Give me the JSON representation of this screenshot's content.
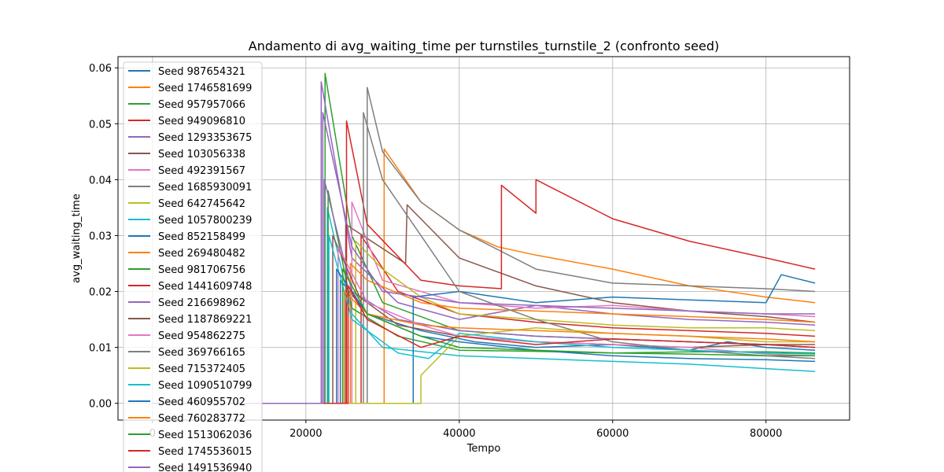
{
  "chart_data": {
    "type": "line",
    "title": "Andamento di avg_waiting_time per turnstiles_turnstile_2 (confronto seed)",
    "xlabel": "Tempo",
    "ylabel": "avg_waiting_time",
    "xlim": [
      -4500,
      90900
    ],
    "ylim": [
      -0.003,
      0.062
    ],
    "xticks": [
      0,
      20000,
      40000,
      60000,
      80000
    ],
    "xtick_labels": [
      "0",
      "20000",
      "40000",
      "60000",
      "80000"
    ],
    "yticks": [
      0.0,
      0.01,
      0.02,
      0.03,
      0.04,
      0.05,
      0.06
    ],
    "ytick_labels": [
      "0.00",
      "0.01",
      "0.02",
      "0.03",
      "0.04",
      "0.05",
      "0.06"
    ],
    "grid": true,
    "legend_position": "upper-left",
    "series": [
      {
        "name": "Seed 987654321",
        "color": "#1f77b4",
        "x": [
          0,
          24500,
          24500,
          28000,
          35000,
          42000,
          50000,
          60000,
          70000,
          75000,
          80000,
          86400
        ],
        "y": [
          0,
          0,
          0.022,
          0.016,
          0.013,
          0.011,
          0.01,
          0.0105,
          0.0095,
          0.011,
          0.01,
          0.0095
        ]
      },
      {
        "name": "Seed 1746581699",
        "color": "#ff7f0e",
        "x": [
          0,
          30200,
          30200,
          35000,
          40000,
          45000,
          50000,
          60000,
          70000,
          80000,
          86400
        ],
        "y": [
          0,
          0,
          0.0455,
          0.036,
          0.031,
          0.028,
          0.0265,
          0.024,
          0.021,
          0.019,
          0.018
        ]
      },
      {
        "name": "Seed 957957066",
        "color": "#2ca02c",
        "x": [
          0,
          22500,
          22500,
          26000,
          30000,
          40000,
          50000,
          60000,
          70000,
          80000,
          86400
        ],
        "y": [
          0,
          0,
          0.059,
          0.03,
          0.018,
          0.013,
          0.012,
          0.0115,
          0.011,
          0.0105,
          0.01
        ]
      },
      {
        "name": "Seed 949096810",
        "color": "#d62728",
        "x": [
          0,
          27200,
          27200,
          32000,
          40000,
          50000,
          60000,
          70000,
          80000,
          86400
        ],
        "y": [
          0,
          0,
          0.03,
          0.02,
          0.016,
          0.0145,
          0.0135,
          0.013,
          0.0125,
          0.012
        ]
      },
      {
        "name": "Seed 1293353675",
        "color": "#9467bd",
        "x": [
          0,
          22000,
          22000,
          26000,
          32000,
          40000,
          50000,
          60000,
          70000,
          80000,
          86400
        ],
        "y": [
          0,
          0,
          0.0575,
          0.026,
          0.018,
          0.015,
          0.0175,
          0.016,
          0.015,
          0.0145,
          0.014
        ]
      },
      {
        "name": "Seed 103056338",
        "color": "#8c564b",
        "x": [
          0,
          25200,
          25200,
          33000,
          33200,
          40000,
          50000,
          60000,
          70000,
          80000,
          86400
        ],
        "y": [
          0,
          0,
          0.032,
          0.025,
          0.0355,
          0.026,
          0.021,
          0.018,
          0.0165,
          0.0155,
          0.0145
        ]
      },
      {
        "name": "Seed 492391567",
        "color": "#e377c2",
        "x": [
          0,
          26000,
          26000,
          30000,
          40000,
          50000,
          60000,
          70000,
          80000,
          86400
        ],
        "y": [
          0,
          0,
          0.036,
          0.022,
          0.018,
          0.017,
          0.0175,
          0.0165,
          0.016,
          0.0155
        ]
      },
      {
        "name": "Seed 1685930091",
        "color": "#7f7f7f",
        "x": [
          0,
          28000,
          28000,
          30000,
          35000,
          40000,
          50000,
          60000,
          70000,
          80000,
          86400
        ],
        "y": [
          0,
          0,
          0.0565,
          0.045,
          0.036,
          0.031,
          0.024,
          0.0215,
          0.021,
          0.0205,
          0.02
        ]
      },
      {
        "name": "Seed 642745642",
        "color": "#bcbd22",
        "x": [
          0,
          26500,
          26500,
          30000,
          35000,
          40000,
          50000,
          60000,
          70000,
          80000,
          86400
        ],
        "y": [
          0,
          0,
          0.029,
          0.024,
          0.019,
          0.016,
          0.015,
          0.014,
          0.0135,
          0.0135,
          0.013
        ]
      },
      {
        "name": "Seed 1057800239",
        "color": "#17becf",
        "x": [
          0,
          22800,
          22800,
          26000,
          30000,
          40000,
          50000,
          60000,
          70000,
          80000,
          86400
        ],
        "y": [
          0,
          0,
          0.035,
          0.016,
          0.01,
          0.0085,
          0.008,
          0.0075,
          0.007,
          0.0062,
          0.0057
        ]
      },
      {
        "name": "Seed 852158499",
        "color": "#1f77b4",
        "x": [
          0,
          34000,
          34000,
          40000,
          50000,
          60000,
          70000,
          80000,
          82000,
          86400
        ],
        "y": [
          0,
          0,
          0.019,
          0.02,
          0.018,
          0.019,
          0.0185,
          0.018,
          0.023,
          0.0215
        ]
      },
      {
        "name": "Seed 269480482",
        "color": "#ff7f0e",
        "x": [
          0,
          25800,
          25800,
          28000,
          35000,
          40000,
          50000,
          60000,
          70000,
          80000,
          86400
        ],
        "y": [
          0,
          0,
          0.025,
          0.022,
          0.018,
          0.017,
          0.0165,
          0.016,
          0.0155,
          0.015,
          0.0145
        ]
      },
      {
        "name": "Seed 981706756",
        "color": "#2ca02c",
        "x": [
          0,
          22900,
          22900,
          26000,
          32000,
          40000,
          50000,
          60000,
          70000,
          80000,
          86400
        ],
        "y": [
          0,
          0,
          0.038,
          0.017,
          0.012,
          0.0095,
          0.0093,
          0.009,
          0.0092,
          0.0092,
          0.009
        ]
      },
      {
        "name": "Seed 1441609748",
        "color": "#d62728",
        "x": [
          0,
          25300,
          25300,
          28000,
          35000,
          40000,
          45500,
          45500,
          50000,
          50000,
          60000,
          70000,
          80000,
          86400
        ],
        "y": [
          0,
          0,
          0.0505,
          0.032,
          0.022,
          0.021,
          0.0205,
          0.039,
          0.034,
          0.04,
          0.033,
          0.029,
          0.026,
          0.024
        ]
      },
      {
        "name": "Seed 216698962",
        "color": "#9467bd",
        "x": [
          0,
          22400,
          22400,
          26000,
          32000,
          40000,
          50000,
          60000,
          70000,
          80000,
          86400
        ],
        "y": [
          0,
          0,
          0.04,
          0.02,
          0.015,
          0.013,
          0.012,
          0.0115,
          0.011,
          0.0105,
          0.01
        ]
      },
      {
        "name": "Seed 1187869221",
        "color": "#8c564b",
        "x": [
          0,
          23500,
          23500,
          27000,
          32000,
          40000,
          50000,
          60000,
          70000,
          80000,
          86400
        ],
        "y": [
          0,
          0,
          0.03,
          0.019,
          0.014,
          0.012,
          0.011,
          0.0105,
          0.01,
          0.0105,
          0.0105
        ]
      },
      {
        "name": "Seed 954862275",
        "color": "#e377c2",
        "x": [
          0,
          24200,
          24200,
          28000,
          35000,
          40000,
          50000,
          60000,
          70000,
          80000,
          86400
        ],
        "y": [
          0,
          0,
          0.028,
          0.018,
          0.014,
          0.012,
          0.011,
          0.0105,
          0.01,
          0.0088,
          0.0085
        ]
      },
      {
        "name": "Seed 369766165",
        "color": "#7f7f7f",
        "x": [
          0,
          27500,
          27500,
          30000,
          35000,
          40000,
          50000,
          60000,
          70000,
          80000,
          86400
        ],
        "y": [
          0,
          0,
          0.052,
          0.04,
          0.03,
          0.02,
          0.015,
          0.011,
          0.0095,
          0.0085,
          0.008
        ]
      },
      {
        "name": "Seed 715372405",
        "color": "#bcbd22",
        "x": [
          0,
          35000,
          35000,
          40000,
          50000,
          60000,
          70000,
          80000,
          86400
        ],
        "y": [
          0,
          0,
          0.005,
          0.012,
          0.0135,
          0.0125,
          0.012,
          0.011,
          0.011
        ]
      },
      {
        "name": "Seed 1090510799",
        "color": "#17becf",
        "x": [
          0,
          23000,
          23000,
          26000,
          32000,
          36000,
          40000,
          50000,
          60000,
          70000,
          80000,
          86400
        ],
        "y": [
          0,
          0,
          0.03,
          0.015,
          0.009,
          0.008,
          0.0125,
          0.011,
          0.01,
          0.0095,
          0.009,
          0.0088
        ]
      },
      {
        "name": "Seed 460955702",
        "color": "#1f77b4",
        "x": [
          0,
          24000,
          24000,
          28000,
          35000,
          40000,
          50000,
          60000,
          70000,
          80000,
          86400
        ],
        "y": [
          0,
          0,
          0.024,
          0.016,
          0.012,
          0.011,
          0.0095,
          0.0085,
          0.008,
          0.0078,
          0.0075
        ]
      },
      {
        "name": "Seed 760283772",
        "color": "#ff7f0e",
        "x": [
          0,
          25000,
          25000,
          28000,
          35000,
          40000,
          50000,
          60000,
          70000,
          80000,
          86400
        ],
        "y": [
          0,
          0,
          0.02,
          0.016,
          0.014,
          0.0135,
          0.013,
          0.0125,
          0.012,
          0.0115,
          0.011
        ]
      },
      {
        "name": "Seed 1513062036",
        "color": "#2ca02c",
        "x": [
          0,
          24800,
          24800,
          28000,
          35000,
          40000,
          50000,
          60000,
          70000,
          80000,
          86400
        ],
        "y": [
          0,
          0,
          0.024,
          0.016,
          0.012,
          0.01,
          0.0095,
          0.009,
          0.0088,
          0.0085,
          0.0085
        ]
      },
      {
        "name": "Seed 1745536015",
        "color": "#d62728",
        "x": [
          0,
          25500,
          25500,
          28000,
          35000,
          40000,
          50000,
          60000,
          70000,
          80000,
          86400
        ],
        "y": [
          0,
          0,
          0.021,
          0.015,
          0.01,
          0.012,
          0.0105,
          0.0115,
          0.011,
          0.0105,
          0.01
        ]
      },
      {
        "name": "Seed 1491536940",
        "color": "#9467bd",
        "x": [
          0,
          22200,
          22200,
          26000,
          30000,
          40000,
          50000,
          60000,
          70000,
          80000,
          86400
        ],
        "y": [
          0,
          0,
          0.052,
          0.028,
          0.02,
          0.018,
          0.0175,
          0.017,
          0.0165,
          0.016,
          0.016
        ]
      }
    ]
  }
}
